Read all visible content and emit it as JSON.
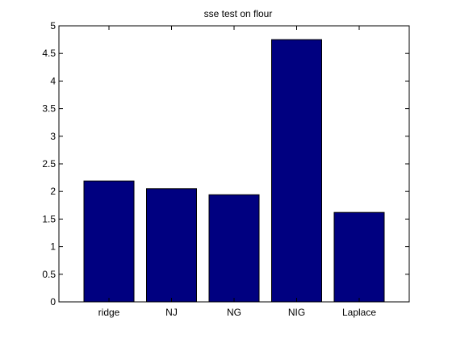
{
  "chart_data": {
    "type": "bar",
    "title": "sse test on flour",
    "xlabel": "",
    "ylabel": "",
    "categories": [
      "ridge",
      "NJ",
      "NG",
      "NIG",
      "Laplace"
    ],
    "values": [
      2.19,
      2.05,
      1.94,
      4.75,
      1.62
    ],
    "ylim": [
      0,
      5
    ],
    "yticks": [
      "0",
      "0.5",
      "1",
      "1.5",
      "2",
      "2.5",
      "3",
      "3.5",
      "4",
      "4.5",
      "5"
    ],
    "bar_color": "#000080",
    "grid": false,
    "legend": "none"
  }
}
